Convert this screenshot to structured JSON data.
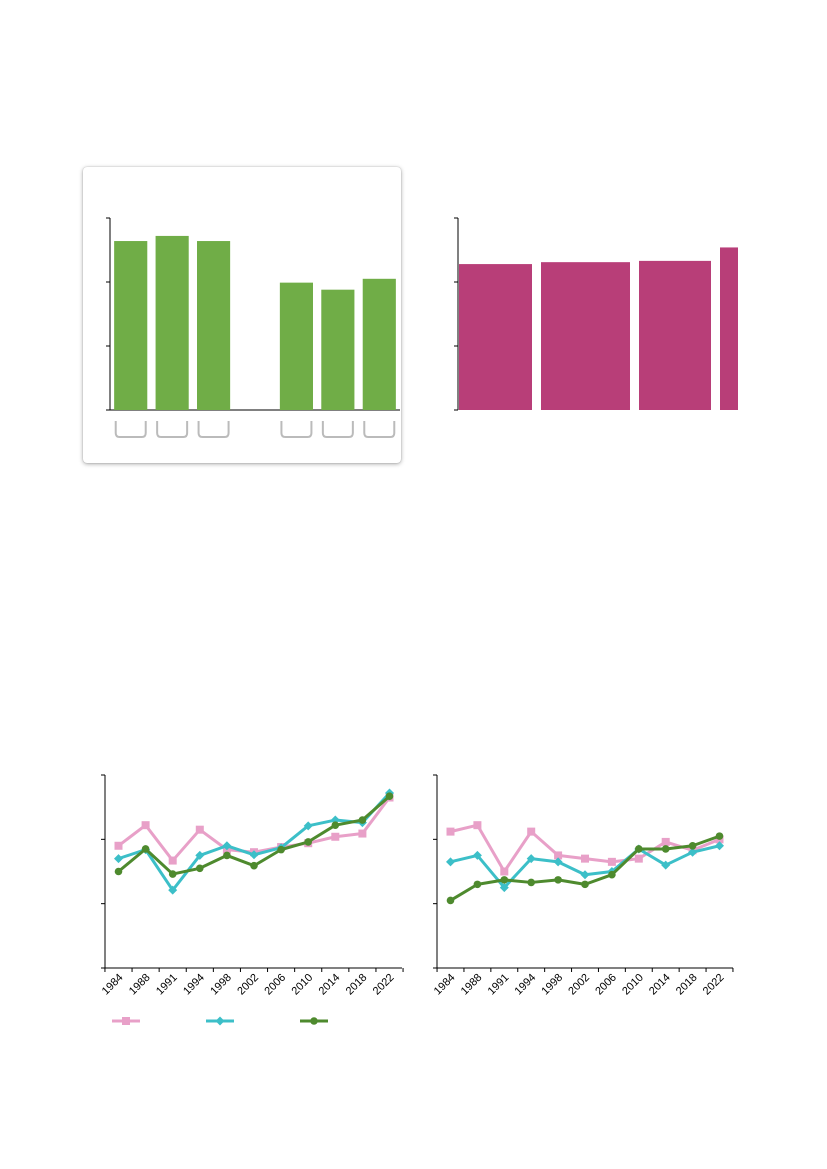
{
  "chart_data": [
    {
      "type": "bar",
      "title": "",
      "xlabel": "",
      "ylabel": "",
      "ylim": [
        0,
        3
      ],
      "categories": [
        "",
        "",
        "",
        "",
        "",
        "",
        ""
      ],
      "values": [
        2.64,
        2.72,
        2.64,
        null,
        1.99,
        1.88,
        2.05
      ],
      "color": "#70ad47",
      "grid": false,
      "legend": "none"
    },
    {
      "type": "bar",
      "title": "",
      "xlabel": "",
      "ylabel": "",
      "ylim": [
        0,
        3
      ],
      "categories": [
        "",
        "",
        "",
        ""
      ],
      "values": [
        2.28,
        2.31,
        2.33,
        2.54
      ],
      "color": "#b83e78",
      "grid": false,
      "legend": "none"
    },
    {
      "type": "line",
      "title": "",
      "xlabel": "",
      "ylabel": "",
      "ylim": [
        0,
        3
      ],
      "x": [
        "1984",
        "1988",
        "1991",
        "1994",
        "1998",
        "2002",
        "2006",
        "2010",
        "2014",
        "2018",
        "2022"
      ],
      "series": [
        {
          "name": "",
          "color": "#e8a0c8",
          "marker": "square",
          "values": [
            1.9,
            2.22,
            1.67,
            2.15,
            1.84,
            1.8,
            1.88,
            1.94,
            2.04,
            2.09,
            2.65
          ]
        },
        {
          "name": "",
          "color": "#3cbfc8",
          "marker": "diamond",
          "values": [
            1.7,
            1.84,
            1.21,
            1.75,
            1.9,
            1.76,
            1.87,
            2.21,
            2.3,
            2.26,
            2.72
          ]
        },
        {
          "name": "",
          "color": "#4e8a2e",
          "marker": "circle",
          "values": [
            1.5,
            1.85,
            1.46,
            1.55,
            1.75,
            1.59,
            1.84,
            1.96,
            2.22,
            2.3,
            2.67
          ]
        }
      ],
      "grid": false,
      "legend": "bottom"
    },
    {
      "type": "line",
      "title": "",
      "xlabel": "",
      "ylabel": "",
      "ylim": [
        0,
        3
      ],
      "x": [
        "1984",
        "1988",
        "1991",
        "1994",
        "1998",
        "2002",
        "2006",
        "2010",
        "2014",
        "2018",
        "2022"
      ],
      "series": [
        {
          "name": "",
          "color": "#e8a0c8",
          "marker": "square",
          "values": [
            2.12,
            2.22,
            1.5,
            2.12,
            1.75,
            1.7,
            1.65,
            1.7,
            1.96,
            1.83,
            2.0
          ]
        },
        {
          "name": "",
          "color": "#3cbfc8",
          "marker": "diamond",
          "values": [
            1.65,
            1.75,
            1.25,
            1.7,
            1.65,
            1.45,
            1.5,
            1.85,
            1.6,
            1.8,
            1.9
          ]
        },
        {
          "name": "",
          "color": "#4e8a2e",
          "marker": "circle",
          "values": [
            1.05,
            1.3,
            1.37,
            1.33,
            1.37,
            1.3,
            1.45,
            1.85,
            1.85,
            1.9,
            2.05
          ]
        }
      ],
      "grid": false,
      "legend": "none"
    }
  ]
}
